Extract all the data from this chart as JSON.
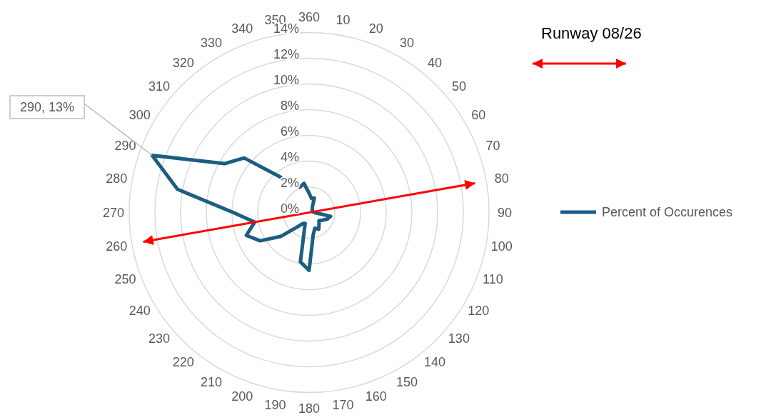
{
  "chart_data": {
    "type": "radar",
    "categories": [
      "360",
      "10",
      "20",
      "30",
      "40",
      "50",
      "60",
      "70",
      "80",
      "90",
      "100",
      "110",
      "120",
      "130",
      "140",
      "150",
      "160",
      "170",
      "180",
      "190",
      "200",
      "210",
      "220",
      "230",
      "240",
      "250",
      "260",
      "270",
      "280",
      "290",
      "300",
      "310",
      "320",
      "330",
      "340",
      "350"
    ],
    "series": [
      {
        "name": "Percent of Occurences",
        "color": "#1b5e82",
        "values": [
          1.5,
          1.1,
          1.2,
          0.5,
          0.4,
          0.3,
          0.3,
          0.3,
          0.3,
          0.4,
          1.7,
          1.5,
          1.2,
          1.0,
          1.2,
          1.5,
          1.3,
          1.8,
          4.5,
          3.9,
          0.9,
          1.0,
          1.5,
          2.9,
          4.4,
          5.2,
          4.3,
          5.9,
          10.4,
          13,
          7.6,
          6.6,
          3.7,
          2.6,
          2.1,
          2.3
        ],
        "value_labels": [
          null,
          null,
          null,
          null,
          null,
          null,
          null,
          null,
          null,
          null,
          null,
          null,
          null,
          null,
          null,
          null,
          null,
          null,
          null,
          null,
          null,
          null,
          null,
          null,
          null,
          null,
          null,
          null,
          null,
          "290, 13%",
          null,
          null,
          null,
          null,
          null,
          null
        ]
      }
    ],
    "ylim": [
      0,
      14
    ],
    "yticks": [
      {
        "value": 0,
        "label": "0%"
      },
      {
        "value": 2,
        "label": "2%"
      },
      {
        "value": 4,
        "label": "4%"
      },
      {
        "value": 6,
        "label": "6%"
      },
      {
        "value": 8,
        "label": "8%"
      },
      {
        "value": 10,
        "label": "10%"
      },
      {
        "value": 12,
        "label": "12%"
      },
      {
        "value": 14,
        "label": "14%"
      }
    ],
    "grid": true,
    "legend": "right",
    "marker": "none",
    "line_style": "solid",
    "annotations": [
      "Runway 08/26"
    ]
  }
}
